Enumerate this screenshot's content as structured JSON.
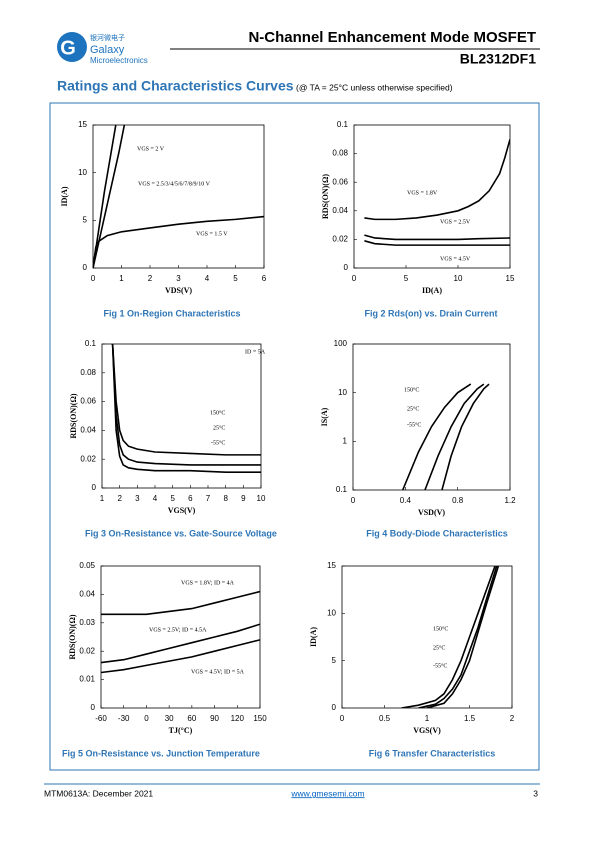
{
  "header": {
    "logo_cn": "银河微电子",
    "logo_name": "Galaxy",
    "logo_sub": "Microelectronics",
    "title": "N-Channel Enhancement Mode MOSFET",
    "part": "BL2312DF1"
  },
  "section": {
    "title": "Ratings and Characteristics Curves",
    "condition": "(@ TA = 25°C unless otherwise specified)"
  },
  "chart_data": [
    {
      "type": "line",
      "caption": "Fig 1 On-Region Characteristics",
      "x_label": "VDS(V)",
      "y_label": "ID(A)",
      "xlim": [
        0,
        6
      ],
      "xticks": [
        0,
        1,
        2,
        3,
        4,
        5,
        6
      ],
      "ylim": [
        0,
        15
      ],
      "yticks": [
        0,
        5,
        10,
        15
      ],
      "series": [
        {
          "name": "VGS = 2 V",
          "color": "#000000",
          "x": [
            0,
            0.3,
            0.6,
            0.9,
            1.1
          ],
          "values": [
            0,
            4,
            8,
            12,
            15
          ]
        },
        {
          "name": "VGS = 2.5/3/4/5/6/7/8/9/10 V",
          "color": "#000000",
          "x": [
            0,
            0.2,
            0.4,
            0.6,
            0.8
          ],
          "values": [
            0,
            4,
            8,
            11.5,
            15
          ]
        },
        {
          "name": "VGS = 1.5 V",
          "color": "#000000",
          "x": [
            0,
            0.1,
            0.2,
            0.5,
            1,
            2,
            3,
            4,
            5,
            6
          ],
          "values": [
            0,
            2.2,
            2.8,
            3.4,
            3.8,
            4.2,
            4.6,
            4.9,
            5.1,
            5.4
          ]
        }
      ]
    },
    {
      "type": "line",
      "caption": "Fig 2 Rds(on) vs. Drain Current",
      "x_label": "ID(A)",
      "y_label": "RDS(ON)(Ω)",
      "xlim": [
        0,
        15
      ],
      "xticks": [
        0,
        5,
        10,
        15
      ],
      "ylim": [
        0,
        0.1
      ],
      "yticks": [
        0,
        0.02,
        0.04,
        0.06,
        0.08,
        0.1
      ],
      "series": [
        {
          "name": "VGS = 1.8V",
          "color": "#000000",
          "x": [
            1,
            2,
            4,
            6,
            8,
            10,
            11,
            12,
            13,
            14,
            14.5,
            15
          ],
          "values": [
            0.035,
            0.034,
            0.034,
            0.035,
            0.037,
            0.04,
            0.043,
            0.047,
            0.054,
            0.066,
            0.077,
            0.09
          ]
        },
        {
          "name": "VGS = 2.5V",
          "color": "#000000",
          "x": [
            1,
            2,
            4,
            6,
            8,
            10,
            12,
            15
          ],
          "values": [
            0.023,
            0.021,
            0.02,
            0.02,
            0.02,
            0.02,
            0.0205,
            0.021
          ]
        },
        {
          "name": "VGS = 4.5V",
          "color": "#000000",
          "x": [
            1,
            2,
            4,
            6,
            8,
            10,
            12,
            15
          ],
          "values": [
            0.019,
            0.017,
            0.016,
            0.016,
            0.016,
            0.016,
            0.016,
            0.016
          ]
        }
      ]
    },
    {
      "type": "line",
      "caption": "Fig 3 On-Resistance vs. Gate-Source Voltage",
      "x_label": "VGS(V)",
      "y_label": "RDS(ON)(Ω)",
      "note": "ID = 5A",
      "xlim": [
        1,
        10
      ],
      "xticks": [
        1,
        2,
        3,
        4,
        5,
        6,
        7,
        8,
        9,
        10
      ],
      "ylim": [
        0,
        0.1
      ],
      "yticks": [
        0,
        0.02,
        0.04,
        0.06,
        0.08,
        0.1
      ],
      "series": [
        {
          "name": "150°C",
          "color": "#000000",
          "x": [
            1.6,
            1.8,
            2,
            2.2,
            2.5,
            3,
            4,
            6,
            8,
            10
          ],
          "values": [
            0.1,
            0.06,
            0.04,
            0.033,
            0.029,
            0.027,
            0.025,
            0.024,
            0.023,
            0.023
          ]
        },
        {
          "name": "25°C",
          "color": "#000000",
          "x": [
            1.6,
            1.8,
            2,
            2.2,
            2.5,
            3,
            4,
            6,
            8,
            10
          ],
          "values": [
            0.1,
            0.05,
            0.03,
            0.023,
            0.02,
            0.018,
            0.017,
            0.016,
            0.016,
            0.016
          ]
        },
        {
          "name": "-55°C",
          "color": "#000000",
          "x": [
            1.6,
            1.8,
            2,
            2.2,
            2.5,
            3,
            4,
            6,
            8,
            10
          ],
          "values": [
            0.1,
            0.04,
            0.022,
            0.016,
            0.014,
            0.013,
            0.012,
            0.012,
            0.011,
            0.011
          ]
        }
      ]
    },
    {
      "type": "line",
      "caption": "Fig 4    Body-Diode Characteristics",
      "x_label": "VSD(V)",
      "y_label": "IS(A)",
      "ylog": true,
      "xlim": [
        0,
        1.2
      ],
      "xticks": [
        0,
        0.4,
        0.8,
        1.2
      ],
      "ylim": [
        0.1,
        100
      ],
      "yticks": [
        0.1,
        1,
        10,
        100
      ],
      "series": [
        {
          "name": "150°C",
          "color": "#000000",
          "x": [
            0.38,
            0.5,
            0.6,
            0.7,
            0.8,
            0.9
          ],
          "values": [
            0.1,
            0.6,
            2,
            5,
            10,
            15
          ]
        },
        {
          "name": "25°C",
          "color": "#000000",
          "x": [
            0.55,
            0.65,
            0.75,
            0.85,
            0.95,
            1.0
          ],
          "values": [
            0.1,
            0.5,
            2,
            6,
            12,
            15
          ]
        },
        {
          "name": "-55°C",
          "color": "#000000",
          "x": [
            0.68,
            0.75,
            0.83,
            0.92,
            1.0,
            1.04
          ],
          "values": [
            0.1,
            0.5,
            2,
            6,
            12,
            15
          ]
        }
      ]
    },
    {
      "type": "line",
      "caption": "Fig 5 On-Resistance vs. Junction Temperature",
      "x_label": "TJ(°C)",
      "y_label": "RDS(ON)(Ω)",
      "xlim": [
        -60,
        150
      ],
      "xticks": [
        -60,
        -30,
        0,
        30,
        60,
        90,
        120,
        150
      ],
      "ylim": [
        0,
        0.05
      ],
      "yticks": [
        0,
        0.01,
        0.02,
        0.03,
        0.04,
        0.05
      ],
      "series": [
        {
          "name": "VGS = 1.8V; ID = 4A",
          "color": "#000000",
          "x": [
            -60,
            -30,
            0,
            30,
            60,
            90,
            120,
            150
          ],
          "values": [
            0.033,
            0.033,
            0.033,
            0.034,
            0.035,
            0.037,
            0.039,
            0.041
          ]
        },
        {
          "name": "VGS = 2.5V; ID = 4.5A",
          "color": "#000000",
          "x": [
            -60,
            -30,
            0,
            30,
            60,
            90,
            120,
            150
          ],
          "values": [
            0.016,
            0.017,
            0.019,
            0.021,
            0.023,
            0.025,
            0.027,
            0.0295
          ]
        },
        {
          "name": "VGS = 4.5V; ID = 5A",
          "color": "#000000",
          "x": [
            -60,
            -30,
            0,
            30,
            60,
            90,
            120,
            150
          ],
          "values": [
            0.0125,
            0.0135,
            0.015,
            0.0165,
            0.018,
            0.02,
            0.022,
            0.024
          ]
        }
      ]
    },
    {
      "type": "line",
      "caption": "Fig 6 Transfer Characteristics",
      "x_label": "VGS(V)",
      "y_label": "ID(A)",
      "xlim": [
        0,
        2
      ],
      "xticks": [
        0,
        0.5,
        1,
        1.5,
        2
      ],
      "ylim": [
        0,
        15
      ],
      "yticks": [
        0,
        5,
        10,
        15
      ],
      "series": [
        {
          "name": "150°C",
          "color": "#000000",
          "x": [
            0.7,
            0.9,
            1.1,
            1.2,
            1.3,
            1.4,
            1.5,
            1.6,
            1.7,
            1.8
          ],
          "values": [
            0,
            0.3,
            0.8,
            1.5,
            3,
            5,
            7.5,
            10,
            12.5,
            15
          ]
        },
        {
          "name": "25°C",
          "color": "#000000",
          "x": [
            0.9,
            1.1,
            1.2,
            1.3,
            1.4,
            1.5,
            1.6,
            1.7,
            1.82
          ],
          "values": [
            0,
            0.4,
            1,
            2,
            3.5,
            6,
            8.5,
            11.5,
            15
          ]
        },
        {
          "name": "-55°C",
          "color": "#000000",
          "x": [
            1.0,
            1.2,
            1.3,
            1.4,
            1.5,
            1.6,
            1.7,
            1.84
          ],
          "values": [
            0,
            0.5,
            1.5,
            3,
            5,
            8,
            11,
            15
          ]
        }
      ]
    }
  ],
  "footer": {
    "doc": "MTM0613A: December 2021",
    "url": "www.gmesemi.com",
    "page": "3"
  }
}
